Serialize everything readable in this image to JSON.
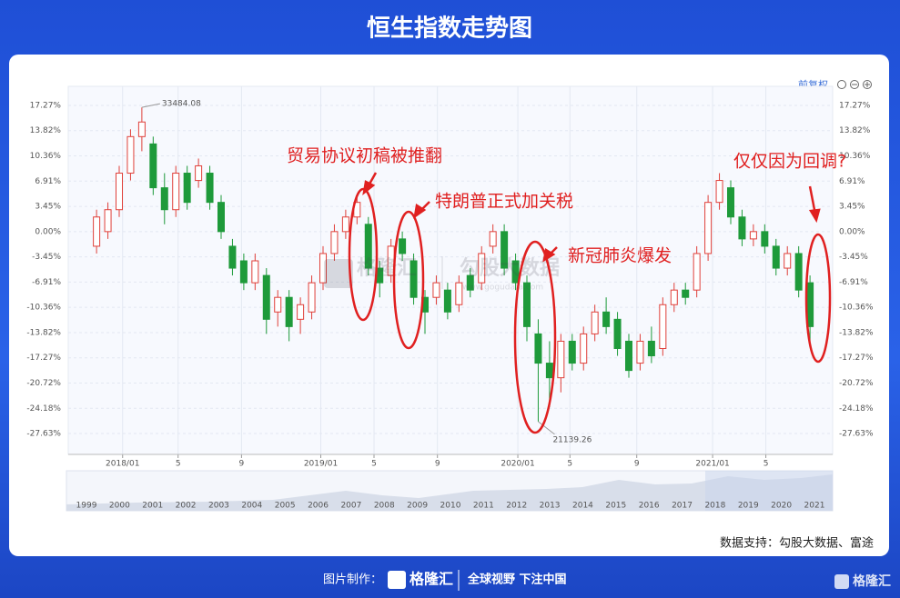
{
  "header": {
    "title": "恒生指数走势图"
  },
  "toolbar": {
    "label": "前复权"
  },
  "chart_data": {
    "type": "candlestick",
    "ylim": [
      -30.49,
      19.88
    ],
    "yticks": [
      {
        "value": 17.27,
        "label": "17.27%"
      },
      {
        "value": 13.82,
        "label": "13.82%"
      },
      {
        "value": 10.36,
        "label": "10.36%"
      },
      {
        "value": 6.91,
        "label": "6.91%"
      },
      {
        "value": 3.45,
        "label": "3.45%"
      },
      {
        "value": 0,
        "label": "0.00%"
      },
      {
        "value": -3.45,
        "label": "-3.45%"
      },
      {
        "value": -6.91,
        "label": "-6.91%"
      },
      {
        "value": -10.36,
        "label": "-10.36%"
      },
      {
        "value": -13.82,
        "label": "-13.82%"
      },
      {
        "value": -17.27,
        "label": "-17.27%"
      },
      {
        "value": -20.72,
        "label": "-20.72%"
      },
      {
        "value": -24.18,
        "label": "-24.18%"
      },
      {
        "value": -27.63,
        "label": "-27.63%"
      }
    ],
    "xlim": [
      -2.5,
      65
    ],
    "xticks": [
      {
        "value": 2.3,
        "label": "2018/01"
      },
      {
        "value": 7.2,
        "label": "5"
      },
      {
        "value": 12.8,
        "label": "9"
      },
      {
        "value": 19.8,
        "label": "2019/01"
      },
      {
        "value": 24.5,
        "label": "5"
      },
      {
        "value": 30.1,
        "label": "9"
      },
      {
        "value": 37.2,
        "label": "2020/01"
      },
      {
        "value": 41.8,
        "label": "5"
      },
      {
        "value": 47.7,
        "label": "9"
      },
      {
        "value": 54.4,
        "label": "2021/01"
      },
      {
        "value": 59.1,
        "label": "5"
      }
    ],
    "up_color": "#e0403a",
    "down_color": "#1e9a3a",
    "candles": [
      [
        -2,
        2,
        3,
        -3
      ],
      [
        0,
        3,
        4,
        -1
      ],
      [
        3,
        8,
        9,
        2
      ],
      [
        8,
        13,
        14,
        7
      ],
      [
        13,
        15,
        17,
        11
      ],
      [
        12,
        6,
        13,
        5
      ],
      [
        6,
        3,
        8,
        1
      ],
      [
        3,
        8,
        9,
        2
      ],
      [
        8,
        4,
        9,
        3
      ],
      [
        7,
        9,
        10,
        6
      ],
      [
        8,
        4,
        9,
        3
      ],
      [
        4,
        0,
        5,
        -1
      ],
      [
        -2,
        -5,
        -1,
        -6
      ],
      [
        -4,
        -7,
        -3,
        -8
      ],
      [
        -7,
        -4,
        -3,
        -8
      ],
      [
        -6,
        -12,
        -5,
        -14
      ],
      [
        -11,
        -9,
        -8,
        -13
      ],
      [
        -9,
        -13,
        -8,
        -15
      ],
      [
        -12,
        -10,
        -9,
        -14
      ],
      [
        -11,
        -7,
        -6,
        -12
      ],
      [
        -7,
        -3,
        -2,
        -8
      ],
      [
        -3,
        0,
        1,
        -4
      ],
      [
        0,
        2,
        3,
        -1
      ],
      [
        2,
        4,
        5,
        1
      ],
      [
        1,
        -5,
        2,
        -6
      ],
      [
        -5,
        -7,
        -4,
        -9
      ],
      [
        -6,
        -2,
        -1,
        -7
      ],
      [
        -1,
        -3,
        0,
        -4
      ],
      [
        -4,
        -9,
        -3,
        -10
      ],
      [
        -9,
        -11,
        -8,
        -14
      ],
      [
        -9,
        -7,
        -6,
        -10
      ],
      [
        -8,
        -11,
        -7,
        -12
      ],
      [
        -10,
        -7,
        -6,
        -11
      ],
      [
        -6,
        -8,
        -5,
        -9
      ],
      [
        -7,
        -3,
        -2,
        -8
      ],
      [
        -2,
        0,
        1,
        -3
      ],
      [
        0,
        -5,
        1,
        -6
      ],
      [
        -4,
        -7,
        -3,
        -8
      ],
      [
        -7,
        -13,
        -6,
        -15
      ],
      [
        -14,
        -18,
        -12,
        -26
      ],
      [
        -18,
        -20,
        -15,
        -24
      ],
      [
        -20,
        -15,
        -14,
        -22
      ],
      [
        -15,
        -18,
        -14,
        -19
      ],
      [
        -18,
        -14,
        -13,
        -19
      ],
      [
        -14,
        -11,
        -10,
        -15
      ],
      [
        -11,
        -13,
        -9,
        -14
      ],
      [
        -12,
        -16,
        -11,
        -17
      ],
      [
        -15,
        -19,
        -14,
        -20
      ],
      [
        -18,
        -15,
        -14,
        -19
      ],
      [
        -15,
        -17,
        -13,
        -18
      ],
      [
        -16,
        -10,
        -9,
        -17
      ],
      [
        -10,
        -8,
        -7,
        -11
      ],
      [
        -8,
        -9,
        -7,
        -10
      ],
      [
        -8,
        -3,
        -2,
        -9
      ],
      [
        -3,
        4,
        5,
        -4
      ],
      [
        4,
        7,
        8,
        3
      ],
      [
        6,
        2,
        7,
        1
      ],
      [
        2,
        -1,
        3,
        -2
      ],
      [
        -1,
        0,
        1,
        -2
      ],
      [
        0,
        -2,
        1,
        -3
      ],
      [
        -2,
        -5,
        -1,
        -6
      ],
      [
        -5,
        -3,
        -2,
        -6
      ],
      [
        -3,
        -8,
        -2,
        -9
      ],
      [
        -7,
        -13,
        -6,
        -15
      ]
    ],
    "peak_label": "33484.08",
    "trough_label": "21139.26",
    "annotations": [
      "贸易协议初稿被推翻",
      "特朗普正式加关税",
      "新冠肺炎爆发",
      "仅仅因为回调?"
    ],
    "navigator_years": [
      "1999",
      "2000",
      "2001",
      "2002",
      "2003",
      "2004",
      "2005",
      "2006",
      "2007",
      "2008",
      "2009",
      "2010",
      "2011",
      "2012",
      "2013",
      "2014",
      "2015",
      "2016",
      "2017",
      "2018",
      "2019",
      "2020",
      "2021"
    ],
    "source": "数据支持：勾股大数据、富途"
  },
  "watermark": {
    "brand": "格隆汇",
    "partner": "勾股大数据",
    "url": "www.gogudata.com"
  },
  "footer": {
    "made_by": "图片制作：",
    "logo": "格隆汇",
    "slogan": "全球视野 下注中国",
    "corner_logo": "格隆汇"
  }
}
